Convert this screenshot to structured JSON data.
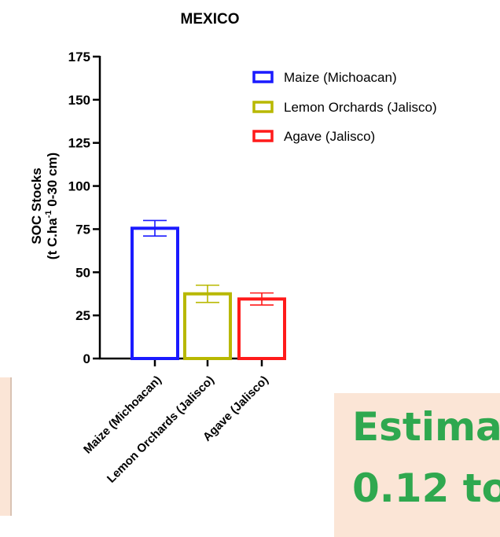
{
  "colors": {
    "maize": "#1a1aff",
    "lemon": "#b8b800",
    "agave": "#ff1a1a",
    "panel_bg": "#fbe5d6",
    "big_text": "#2fa84f"
  },
  "chart_data": {
    "type": "bar",
    "title": "MEXICO",
    "ylabel_line1": "SOC Stocks",
    "ylabel_line2_prefix": "(t C.ha",
    "ylabel_line2_sup": "-1",
    "ylabel_line2_suffix": " 0-30 cm)",
    "ylim": [
      0,
      175
    ],
    "yticks": [
      "0",
      "25",
      "50",
      "75",
      "100",
      "125",
      "150",
      "175"
    ],
    "categories": [
      "Maize (Michoacan)",
      "Lemon Orchards (Jalisco)",
      "Agave (Jalisco)"
    ],
    "values": [
      75.5,
      37.5,
      34.5
    ],
    "errors": [
      4.5,
      5.0,
      3.5
    ],
    "legend_position": "top-right",
    "legend": [
      "Maize (Michoacan)",
      "Lemon Orchards (Jalisco)",
      "Agave (Jalisco)"
    ]
  },
  "overlay": {
    "line1": "Estima",
    "line2": "0.12 to"
  }
}
